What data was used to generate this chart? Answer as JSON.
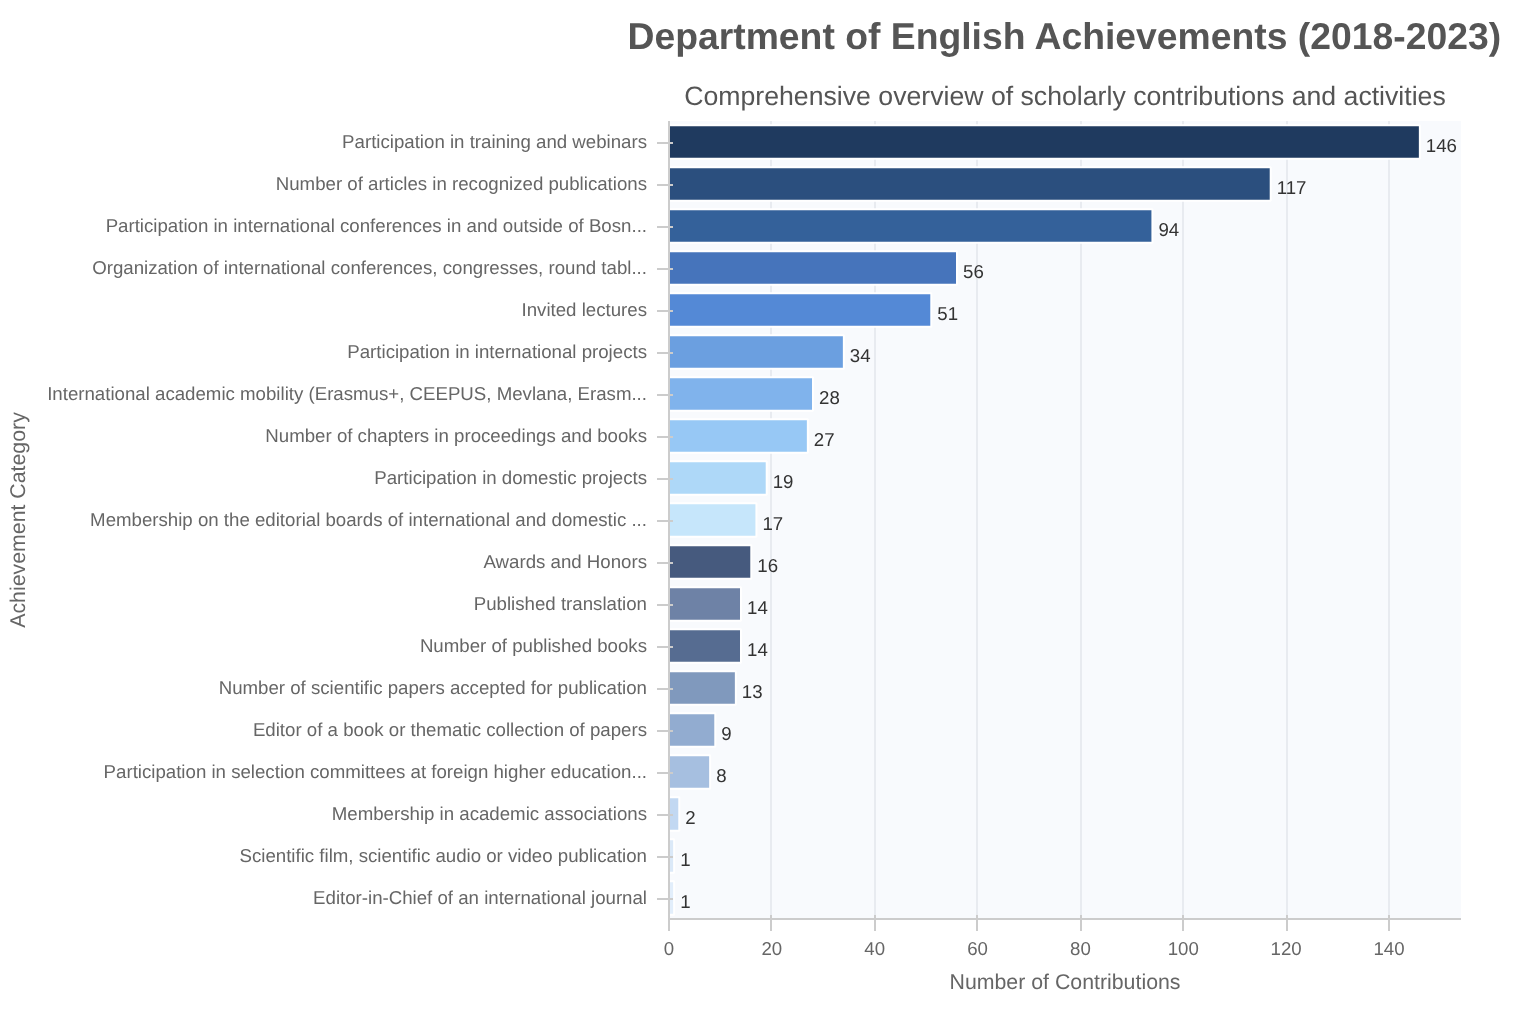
{
  "chart_data": {
    "type": "bar",
    "orientation": "horizontal",
    "title": "Department of English Achievements (2018-2023)",
    "subtitle": "Comprehensive overview of scholarly contributions and activities",
    "xlabel": "Number of Contributions",
    "ylabel": "Achievement Category",
    "categories": [
      "Participation in training and webinars",
      "Number of articles in recognized publications",
      "Participation in international conferences in and outside of Bosn...",
      "Organization of international conferences, congresses, round tabl...",
      "Invited lectures",
      "Participation in international projects",
      "International academic mobility (Erasmus+, CEEPUS, Mevlana, Erasm...",
      "Number of chapters in proceedings and books",
      "Participation in domestic projects",
      "Membership on the editorial boards of international and domestic ...",
      "Awards and Honors",
      "Published translation",
      "Number of published books",
      "Number of scientific papers accepted for publication",
      "Editor of a book or thematic collection of papers",
      "Participation in selection committees at foreign higher education...",
      "Membership in academic associations",
      "Scientific film, scientific audio or video publication",
      "Editor-in-Chief of an international journal"
    ],
    "values": [
      146,
      117,
      94,
      56,
      51,
      34,
      28,
      27,
      19,
      17,
      16,
      14,
      14,
      13,
      9,
      8,
      2,
      1,
      1
    ],
    "colors": [
      "#1f3a5f",
      "#2b4f7e",
      "#34619a",
      "#4674bb",
      "#5489d6",
      "#6b9fe0",
      "#80b3ec",
      "#97c8f5",
      "#aed8f8",
      "#c6e6fb",
      "#465a7e",
      "#6e82a6",
      "#566c91",
      "#8099bd",
      "#92acd0",
      "#a6bfe0",
      "#c2d8f2",
      "#dbe9f8",
      "#e2eefb"
    ],
    "data_labels": true,
    "xlim": [
      0,
      154
    ],
    "xticks": [
      0,
      20,
      40,
      60,
      80,
      100,
      120,
      140
    ],
    "grid": "x"
  }
}
